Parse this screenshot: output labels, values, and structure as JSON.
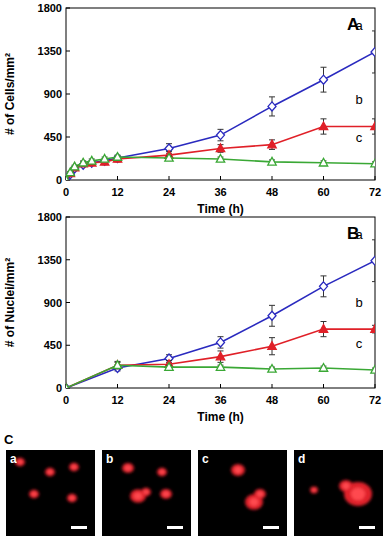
{
  "chart_data": [
    {
      "type": "line",
      "title": "A",
      "x_label": "Time (h)",
      "y_label": "# of Cells/mm²",
      "x": [
        0,
        1,
        2,
        4,
        6,
        9,
        12,
        24,
        36,
        48,
        60,
        72
      ],
      "xlim": [
        0,
        72
      ],
      "xticks": [
        0,
        12,
        24,
        36,
        48,
        60,
        72
      ],
      "ylim": [
        0,
        1800
      ],
      "yticks": [
        0,
        450,
        900,
        1350,
        1800
      ],
      "series": [
        {
          "name": "a",
          "color": "#2a2abf",
          "marker": "diamond-open",
          "line_style": "solid",
          "values": [
            0,
            60,
            120,
            160,
            180,
            200,
            230,
            330,
            470,
            770,
            1050,
            1340
          ],
          "errors": [
            0,
            10,
            15,
            20,
            20,
            20,
            20,
            50,
            60,
            100,
            130,
            220
          ]
        },
        {
          "name": "b",
          "color": "#e02028",
          "marker": "triangle-filled",
          "line_style": "solid",
          "values": [
            0,
            70,
            130,
            170,
            180,
            190,
            220,
            260,
            330,
            370,
            560,
            560
          ],
          "errors": [
            0,
            10,
            15,
            20,
            20,
            30,
            30,
            40,
            40,
            50,
            80,
            80
          ]
        },
        {
          "name": "c",
          "color": "#3aa835",
          "marker": "triangle-open",
          "line_style": "solid",
          "values": [
            0,
            80,
            140,
            180,
            200,
            220,
            240,
            230,
            220,
            190,
            180,
            170
          ],
          "errors": [
            0,
            10,
            15,
            20,
            20,
            20,
            20,
            20,
            20,
            20,
            20,
            20
          ]
        }
      ]
    },
    {
      "type": "line",
      "title": "B",
      "x_label": "Time (h)",
      "y_label": "# of Nuclei/mm²",
      "x": [
        0,
        12,
        24,
        36,
        48,
        60,
        72
      ],
      "xlim": [
        0,
        72
      ],
      "xticks": [
        0,
        12,
        24,
        36,
        48,
        60,
        72
      ],
      "ylim": [
        0,
        1800
      ],
      "yticks": [
        0,
        450,
        900,
        1350,
        1800
      ],
      "series": [
        {
          "name": "a",
          "color": "#2a2abf",
          "marker": "diamond-open",
          "line_style": "solid",
          "values": [
            0,
            210,
            310,
            480,
            760,
            1070,
            1340
          ],
          "errors": [
            0,
            30,
            40,
            60,
            110,
            110,
            220
          ]
        },
        {
          "name": "b",
          "color": "#e02028",
          "marker": "triangle-filled",
          "line_style": "solid",
          "values": [
            0,
            240,
            250,
            330,
            440,
            620,
            620
          ],
          "errors": [
            0,
            30,
            40,
            60,
            90,
            80,
            40
          ]
        },
        {
          "name": "c",
          "color": "#3aa835",
          "marker": "triangle-open",
          "line_style": "solid",
          "values": [
            0,
            240,
            220,
            220,
            200,
            210,
            190
          ],
          "errors": [
            0,
            40,
            20,
            20,
            20,
            20,
            20
          ]
        }
      ]
    }
  ],
  "panel_c": {
    "title": "C",
    "images": [
      {
        "label": "a"
      },
      {
        "label": "b"
      },
      {
        "label": "c"
      },
      {
        "label": "d"
      }
    ]
  }
}
